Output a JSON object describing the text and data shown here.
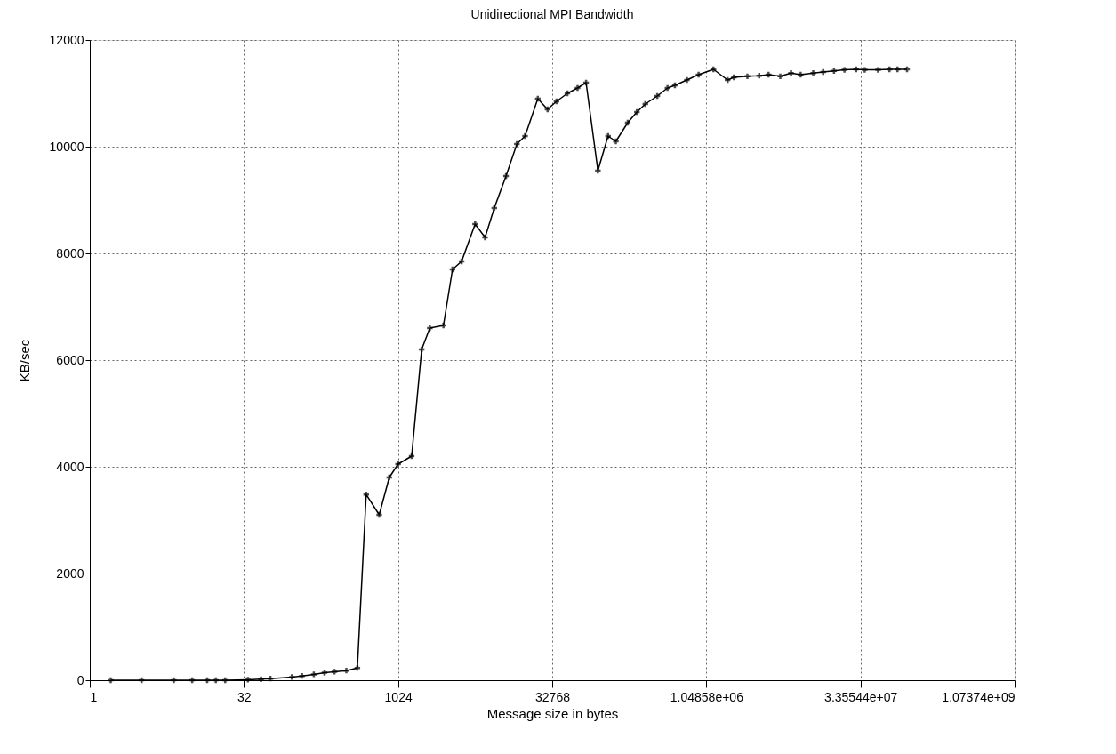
{
  "chart_data": {
    "type": "line",
    "title": "Unidirectional MPI Bandwidth",
    "xlabel": "Message size in bytes",
    "ylabel": "KB/sec",
    "x": [
      1.6,
      3.2,
      6.6,
      10,
      14,
      17,
      21,
      35,
      47,
      58,
      94,
      118,
      154,
      196,
      245,
      320,
      410,
      500,
      670,
      840,
      1024,
      1390,
      1740,
      2090,
      2840,
      3480,
      4270,
      5790,
      7240,
      8900,
      11600,
      14800,
      17800,
      23700,
      29500,
      36100,
      46100,
      57900,
      70200,
      91500,
      115000,
      137000,
      179000,
      220000,
      266000,
      348000,
      438000,
      517000,
      677000,
      881000,
      1230000,
      1690000,
      1950000,
      2640000,
      3440000,
      4250000,
      5530000,
      7040000,
      8740000,
      11600000,
      14500000,
      18500000,
      23400000,
      30400000,
      36900000,
      49800000,
      64400000,
      77100000,
      95600000
    ],
    "series": [
      {
        "color": "#000000",
        "values": [
          0,
          0,
          0,
          0,
          0,
          0,
          0,
          10,
          20,
          30,
          60,
          80,
          110,
          140,
          160,
          180,
          230,
          3480,
          3100,
          3800,
          4050,
          4200,
          6200,
          6600,
          6650,
          7700,
          7850,
          8550,
          8300,
          8850,
          9450,
          10050,
          10200,
          10900,
          10700,
          10850,
          11000,
          11100,
          11200,
          9550,
          10200,
          10100,
          10450,
          10650,
          10800,
          10950,
          11100,
          11150,
          11250,
          11350,
          11450,
          11250,
          11300,
          11320,
          11330,
          11350,
          11320,
          11380,
          11350,
          11380,
          11400,
          11420,
          11440,
          11450,
          11440,
          11440,
          11450,
          11450,
          11450
        ]
      }
    ],
    "xlim": [
      1,
      1073741824
    ],
    "xticks": [
      1,
      32,
      1024,
      32768,
      {
        "value": 1048576,
        "label": "1.04858e+06"
      },
      {
        "value": 33554432,
        "label": "3.35544e+07"
      },
      {
        "value": 1073741824,
        "label": "1.07374e+09"
      }
    ],
    "ylim": [
      0,
      12000
    ],
    "yticks": [
      0,
      2000,
      4000,
      6000,
      8000,
      10000,
      12000
    ],
    "log": "x",
    "grid": true,
    "marker": "cross",
    "line_style": "solid"
  }
}
